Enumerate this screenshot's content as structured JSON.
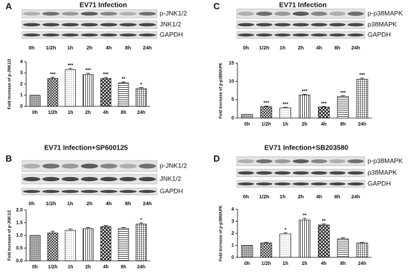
{
  "chart_data": [
    {
      "type": "bar",
      "panel": "A",
      "title": "EV71 Infection",
      "blot_labels": [
        "p-JNK1/2",
        "JNK1/2",
        "GAPDH"
      ],
      "y_label": "Fold increase of p-JNK1/2",
      "categories": [
        "0h",
        "1/2h",
        "1h",
        "2h",
        "4h",
        "8h",
        "24h"
      ],
      "values": [
        1,
        2.5,
        3.3,
        2.85,
        2.5,
        2.1,
        1.6
      ],
      "errors": [
        0,
        0.12,
        0.1,
        0.12,
        0.1,
        0.1,
        0.08
      ],
      "annotations": [
        null,
        "***",
        "***",
        "***",
        "***",
        "**",
        "*"
      ],
      "ylim": [
        0,
        4
      ],
      "yticks": [
        0,
        1,
        2,
        3,
        4
      ]
    },
    {
      "type": "bar",
      "panel": "B",
      "title": "EV71 Infection+SP600125",
      "blot_labels": [
        "p-JNK1/2",
        "JNK1/2",
        "GAPDH"
      ],
      "y_label": "Fold increase of p-JNK1/2",
      "categories": [
        "0h",
        "1/2h",
        "1h",
        "2h",
        "4h",
        "8h",
        "24h"
      ],
      "values": [
        1,
        1.1,
        1.2,
        1.27,
        1.35,
        1.28,
        1.45
      ],
      "errors": [
        0,
        0.06,
        0.05,
        0.04,
        0.04,
        0.03,
        0.04
      ],
      "annotations": [
        null,
        null,
        null,
        null,
        null,
        null,
        "*"
      ],
      "ylim": [
        0,
        2
      ],
      "yticks": [
        {
          "value": 0,
          "label": "0.0"
        },
        {
          "value": 0.5,
          "label": "0.5"
        },
        {
          "value": 1,
          "label": "1.0"
        },
        {
          "value": 1.5,
          "label": "1.5"
        },
        {
          "value": 2,
          "label": "2.0"
        }
      ]
    },
    {
      "type": "bar",
      "panel": "C",
      "title": "EV71 Infection",
      "blot_labels": [
        "p-p38MAPK",
        "p38MAPK",
        "GAPDH"
      ],
      "y_label": "Fold increase of p-p38MAPK",
      "categories": [
        "0h",
        "1/2h",
        "1h",
        "2h",
        "4h",
        "8h",
        "24h"
      ],
      "values": [
        1,
        3.1,
        2.8,
        6.3,
        3.0,
        5.9,
        10.6
      ],
      "errors": [
        0,
        0.2,
        0.15,
        0.2,
        0.15,
        0.2,
        0.3
      ],
      "annotations": [
        null,
        "***",
        "***",
        "***",
        "***",
        "***",
        "***"
      ],
      "ylim": [
        0,
        15
      ],
      "yticks": [
        0,
        5,
        10,
        15
      ]
    },
    {
      "type": "bar",
      "panel": "D",
      "title": "EV71 Infection+SB203580",
      "blot_labels": [
        "p-p38MAPK",
        "p38MAPK",
        "GAPDH"
      ],
      "y_label": "Fold increase of p-p38MAPK",
      "categories": [
        "0h",
        "1/2h",
        "1h",
        "2h",
        "4h",
        "8h",
        "24h"
      ],
      "values": [
        1,
        1.2,
        1.95,
        3.1,
        2.7,
        1.55,
        1.2
      ],
      "errors": [
        0,
        0.05,
        0.1,
        0.15,
        0.1,
        0.08,
        0.05
      ],
      "annotations": [
        null,
        null,
        "*",
        "**",
        "**",
        null,
        null
      ],
      "ylim": [
        0,
        4
      ],
      "yticks": [
        0,
        1,
        2,
        3,
        4
      ]
    }
  ]
}
